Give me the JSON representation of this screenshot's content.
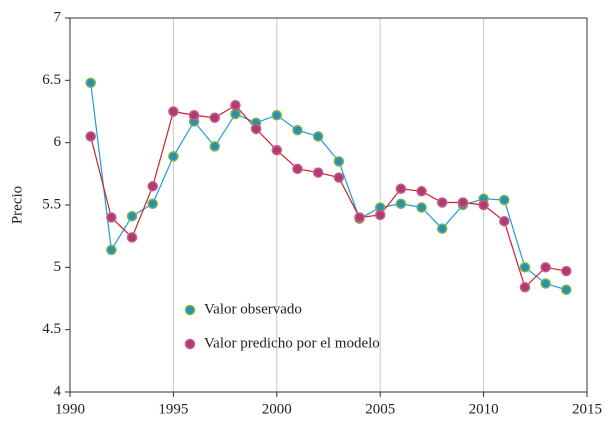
{
  "chart_data": {
    "type": "line",
    "y_label": "Precio",
    "x": [
      1991,
      1992,
      1993,
      1994,
      1995,
      1996,
      1997,
      1998,
      1999,
      2000,
      2001,
      2002,
      2003,
      2004,
      2005,
      2006,
      2007,
      2008,
      2009,
      2010,
      2011,
      2012,
      2013,
      2014
    ],
    "series": [
      {
        "name": "Valor observado",
        "color": "#1f9fd6",
        "marker_color": "#2a8fb0",
        "marker_edge": "#7ab648",
        "values": [
          6.48,
          5.14,
          5.41,
          5.51,
          5.89,
          6.17,
          5.97,
          6.23,
          6.16,
          6.22,
          6.1,
          6.05,
          5.85,
          5.39,
          5.48,
          5.51,
          5.48,
          5.31,
          5.5,
          5.55,
          5.54,
          5.0,
          4.87,
          4.82
        ]
      },
      {
        "name": "Valor predicho por el modelo",
        "color": "#d0202e",
        "marker_color": "#b23a6e",
        "marker_edge": "#c06090",
        "values": [
          6.05,
          5.4,
          5.24,
          5.65,
          6.25,
          6.22,
          6.2,
          6.3,
          6.11,
          5.94,
          5.79,
          5.76,
          5.72,
          5.4,
          5.42,
          5.63,
          5.61,
          5.52,
          5.52,
          5.5,
          5.37,
          4.84,
          5.0,
          4.97
        ]
      }
    ],
    "xlim": [
      1990,
      2015
    ],
    "xticks": [
      1990,
      1995,
      2000,
      2005,
      2010,
      2015
    ],
    "ylim": [
      4,
      7
    ],
    "yticks": [
      4,
      4.5,
      5,
      5.5,
      6,
      6.5,
      7
    ],
    "grid": "x",
    "legend": "lower center"
  }
}
